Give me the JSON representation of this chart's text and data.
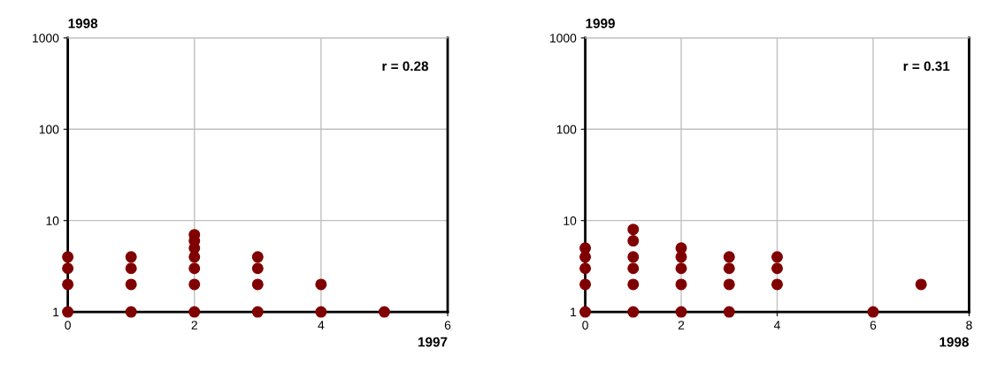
{
  "chart_data": [
    {
      "type": "scatter",
      "title": "1998",
      "xlabel": "1997",
      "annotations": [
        "r = 0.28"
      ],
      "x": [
        0,
        0,
        0,
        0,
        1,
        1,
        1,
        1,
        2,
        2,
        2,
        2,
        2,
        2,
        2,
        3,
        3,
        3,
        3,
        4,
        4,
        5
      ],
      "series": [
        {
          "color": "#800000",
          "values": [
            1,
            2,
            3,
            4,
            1,
            2,
            3,
            4,
            1,
            2,
            3,
            4,
            5,
            6,
            7,
            1,
            2,
            3,
            4,
            1,
            2,
            1
          ]
        }
      ],
      "xlim": [
        0,
        6
      ],
      "xticks": [
        0,
        2,
        4,
        6
      ],
      "ylim": [
        1,
        1000
      ],
      "yticks": [
        1,
        10,
        100,
        1000
      ],
      "log": "y",
      "grid": true,
      "marker": "circle"
    },
    {
      "type": "scatter",
      "title": "1999",
      "xlabel": "1998",
      "annotations": [
        "r = 0.31"
      ],
      "x": [
        0,
        0,
        0,
        0,
        0,
        1,
        1,
        1,
        1,
        1,
        1,
        2,
        2,
        2,
        2,
        2,
        3,
        3,
        3,
        3,
        4,
        4,
        4,
        6,
        7
      ],
      "series": [
        {
          "color": "#800000",
          "values": [
            1,
            2,
            3,
            4,
            5,
            1,
            2,
            3,
            4,
            6,
            8,
            1,
            2,
            3,
            4,
            5,
            1,
            2,
            3,
            4,
            2,
            3,
            4,
            1,
            2
          ]
        }
      ],
      "xlim": [
        0,
        8
      ],
      "xticks": [
        0,
        2,
        4,
        6,
        8
      ],
      "ylim": [
        1,
        1000
      ],
      "yticks": [
        1,
        10,
        100,
        1000
      ],
      "log": "y",
      "grid": true,
      "marker": "circle"
    }
  ]
}
